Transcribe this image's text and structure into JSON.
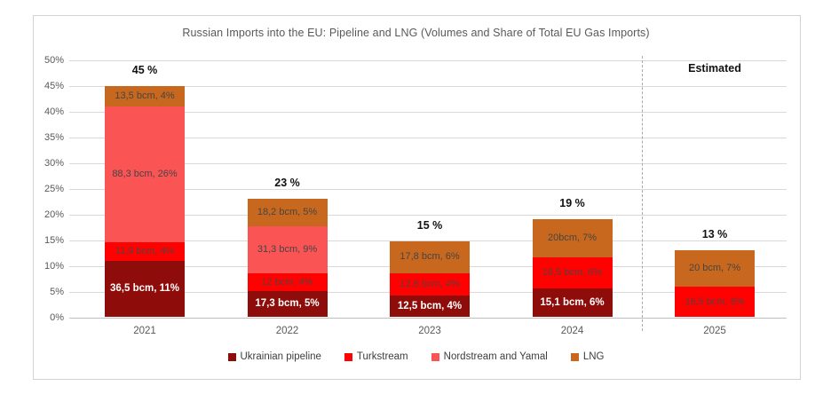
{
  "chart_data": {
    "type": "bar",
    "stacked": true,
    "title": "Russian Imports into the EU: Pipeline and LNG (Volumes and Share of Total EU Gas Imports)",
    "categories": [
      "2021",
      "2022",
      "2023",
      "2024",
      "2025"
    ],
    "ylim": [
      0,
      50
    ],
    "grid": true,
    "legend_position": "bottom",
    "yticks": {
      "values": [
        0,
        5,
        10,
        15,
        20,
        25,
        30,
        35,
        40,
        45,
        50
      ],
      "labels": [
        "0%",
        "5%",
        "10%",
        "15%",
        "20%",
        "25%",
        "30%",
        "35%",
        "40%",
        "45%",
        "50%"
      ]
    },
    "totals": {
      "labels": [
        "45 %",
        "23 %",
        "15 %",
        "19 %",
        "13 %"
      ],
      "pct": [
        45,
        23,
        15,
        19,
        13
      ]
    },
    "annotations": {
      "estimated_label": "Estimated",
      "estimated_category": "2025"
    },
    "series": [
      {
        "name": "Ukrainian pipeline",
        "color": "#8e0c09",
        "label_color": "#ffffff",
        "label_bold": true,
        "values_bcm": [
          36.5,
          17.3,
          12.5,
          15.1,
          null
        ],
        "share_pct": [
          11,
          5,
          4,
          6,
          null
        ],
        "labels": [
          "36,5 bcm, 11%",
          "17,3 bcm, 5%",
          "12,5 bcm, 4%",
          "15,1 bcm, 6%",
          ""
        ],
        "heights_pct": [
          10.94,
          5.05,
          4.28,
          5.56,
          0
        ]
      },
      {
        "name": "Turkstream",
        "color": "#fe0100",
        "label_color": "#584040",
        "label_bold": false,
        "values_bcm": [
          11.9,
          12,
          12.6,
          16.5,
          16.5
        ],
        "share_pct": [
          4,
          4,
          4,
          6,
          6
        ],
        "labels": [
          "11,9 bcm, 4%",
          "12 bcm, 4%",
          "12,6 bcm, 4%",
          "16,5 bcm, 6%",
          "16,5 bcm, 6%"
        ],
        "heights_pct": [
          3.57,
          3.5,
          4.32,
          6.07,
          5.88
        ]
      },
      {
        "name": "Nordstream and Yamal",
        "color": "#fb5455",
        "label_color": "#454545",
        "label_bold": false,
        "values_bcm": [
          88.3,
          31.3,
          null,
          null,
          null
        ],
        "share_pct": [
          26,
          9,
          null,
          null,
          null
        ],
        "labels": [
          "88,3 bcm, 26%",
          "31,3 bcm, 9%",
          "",
          "",
          ""
        ],
        "heights_pct": [
          26.45,
          9.14,
          0,
          0,
          0
        ]
      },
      {
        "name": "LNG",
        "color": "#c8681e",
        "label_color": "#454545",
        "label_bold": false,
        "values_bcm": [
          13.5,
          18.2,
          17.8,
          20,
          20
        ],
        "share_pct": [
          4,
          5,
          6,
          7,
          7
        ],
        "labels": [
          "13,5 bcm, 4%",
          "18,2 bcm, 5%",
          "17,8 bcm, 6%",
          "20bcm, 7%",
          "20 bcm, 7%"
        ],
        "heights_pct": [
          4.04,
          5.31,
          6.1,
          7.36,
          7.12
        ]
      }
    ]
  }
}
